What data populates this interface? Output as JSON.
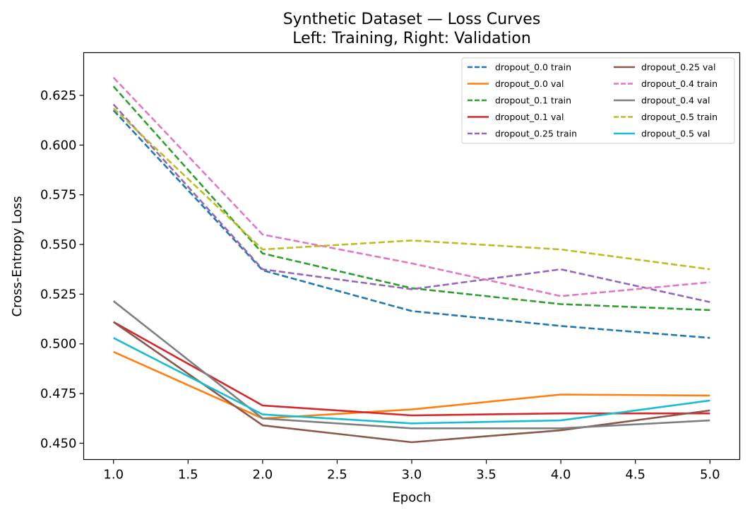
{
  "chart_data": {
    "type": "line",
    "title": "Synthetic Dataset — Loss Curves",
    "subtitle": "Left: Training, Right: Validation",
    "xlabel": "Epoch",
    "ylabel": "Cross-Entropy Loss",
    "xlim": [
      0.8,
      5.2
    ],
    "ylim": [
      0.4418,
      0.6465
    ],
    "x_ticks": [
      "1.0",
      "1.5",
      "2.0",
      "2.5",
      "3.0",
      "3.5",
      "4.0",
      "4.5",
      "5.0"
    ],
    "y_ticks": [
      "0.450",
      "0.475",
      "0.500",
      "0.525",
      "0.550",
      "0.575",
      "0.600",
      "0.625"
    ],
    "grid": false,
    "legend_position": "top-right",
    "legend_columns": 2,
    "x": [
      1,
      2,
      3,
      4,
      5
    ],
    "series": [
      {
        "name": "dropout_0.0 train",
        "color": "#1f77b4",
        "dash": "dashed",
        "values": [
          0.6175,
          0.537,
          0.5165,
          0.509,
          0.503
        ]
      },
      {
        "name": "dropout_0.0 val",
        "color": "#ff7f0e",
        "dash": "solid",
        "values": [
          0.496,
          0.4625,
          0.467,
          0.4745,
          0.474
        ]
      },
      {
        "name": "dropout_0.1 train",
        "color": "#2ca02c",
        "dash": "dashed",
        "values": [
          0.6295,
          0.5455,
          0.528,
          0.52,
          0.517
        ]
      },
      {
        "name": "dropout_0.1 val",
        "color": "#d62728",
        "dash": "solid",
        "values": [
          0.511,
          0.469,
          0.464,
          0.465,
          0.465
        ]
      },
      {
        "name": "dropout_0.25 train",
        "color": "#9467bd",
        "dash": "dashed",
        "values": [
          0.6205,
          0.5375,
          0.5275,
          0.5375,
          0.521
        ]
      },
      {
        "name": "dropout_0.25 val",
        "color": "#8c564b",
        "dash": "solid",
        "values": [
          0.511,
          0.459,
          0.4505,
          0.4565,
          0.4665
        ]
      },
      {
        "name": "dropout_0.4 train",
        "color": "#e377c2",
        "dash": "dashed",
        "values": [
          0.634,
          0.555,
          0.5405,
          0.524,
          0.531
        ]
      },
      {
        "name": "dropout_0.4 val",
        "color": "#7f7f7f",
        "dash": "solid",
        "values": [
          0.5215,
          0.4625,
          0.4575,
          0.4575,
          0.4615
        ]
      },
      {
        "name": "dropout_0.5 train",
        "color": "#bcbd22",
        "dash": "dashed",
        "values": [
          0.6185,
          0.5475,
          0.552,
          0.5475,
          0.5375
        ]
      },
      {
        "name": "dropout_0.5 val",
        "color": "#17becf",
        "dash": "solid",
        "values": [
          0.503,
          0.4645,
          0.46,
          0.4615,
          0.4715
        ]
      }
    ]
  }
}
